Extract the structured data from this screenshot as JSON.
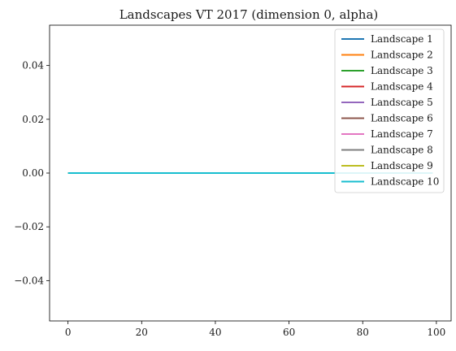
{
  "chart_data": {
    "type": "line",
    "title": "Landscapes VT 2017 (dimension 0, alpha)",
    "xlabel": "",
    "ylabel": "",
    "xlim": [
      -5,
      104
    ],
    "ylim": [
      -0.055,
      0.055
    ],
    "x_ticks": [
      0,
      20,
      40,
      60,
      80,
      100
    ],
    "y_ticks": [
      -0.04,
      -0.02,
      0.0,
      0.02,
      0.04
    ],
    "y_tick_labels": [
      "−0.04",
      "−0.02",
      "0.00",
      "0.02",
      "0.04"
    ],
    "x_tick_labels": [
      "0",
      "20",
      "40",
      "60",
      "80",
      "100"
    ],
    "grid": false,
    "legend_position": "top-right",
    "x": [
      0,
      99
    ],
    "series": [
      {
        "name": "Landscape 1",
        "color": "#1f77b4",
        "values": [
          0,
          0
        ]
      },
      {
        "name": "Landscape 2",
        "color": "#ff7f0e",
        "values": [
          0,
          0
        ]
      },
      {
        "name": "Landscape 3",
        "color": "#2ca02c",
        "values": [
          0,
          0
        ]
      },
      {
        "name": "Landscape 4",
        "color": "#d62728",
        "values": [
          0,
          0
        ]
      },
      {
        "name": "Landscape 5",
        "color": "#9467bd",
        "values": [
          0,
          0
        ]
      },
      {
        "name": "Landscape 6",
        "color": "#8c564b",
        "values": [
          0,
          0
        ]
      },
      {
        "name": "Landscape 7",
        "color": "#e377c2",
        "values": [
          0,
          0
        ]
      },
      {
        "name": "Landscape 8",
        "color": "#7f7f7f",
        "values": [
          0,
          0
        ]
      },
      {
        "name": "Landscape 9",
        "color": "#bcbd22",
        "values": [
          0,
          0
        ]
      },
      {
        "name": "Landscape 10",
        "color": "#17becf",
        "values": [
          0,
          0
        ]
      }
    ]
  }
}
